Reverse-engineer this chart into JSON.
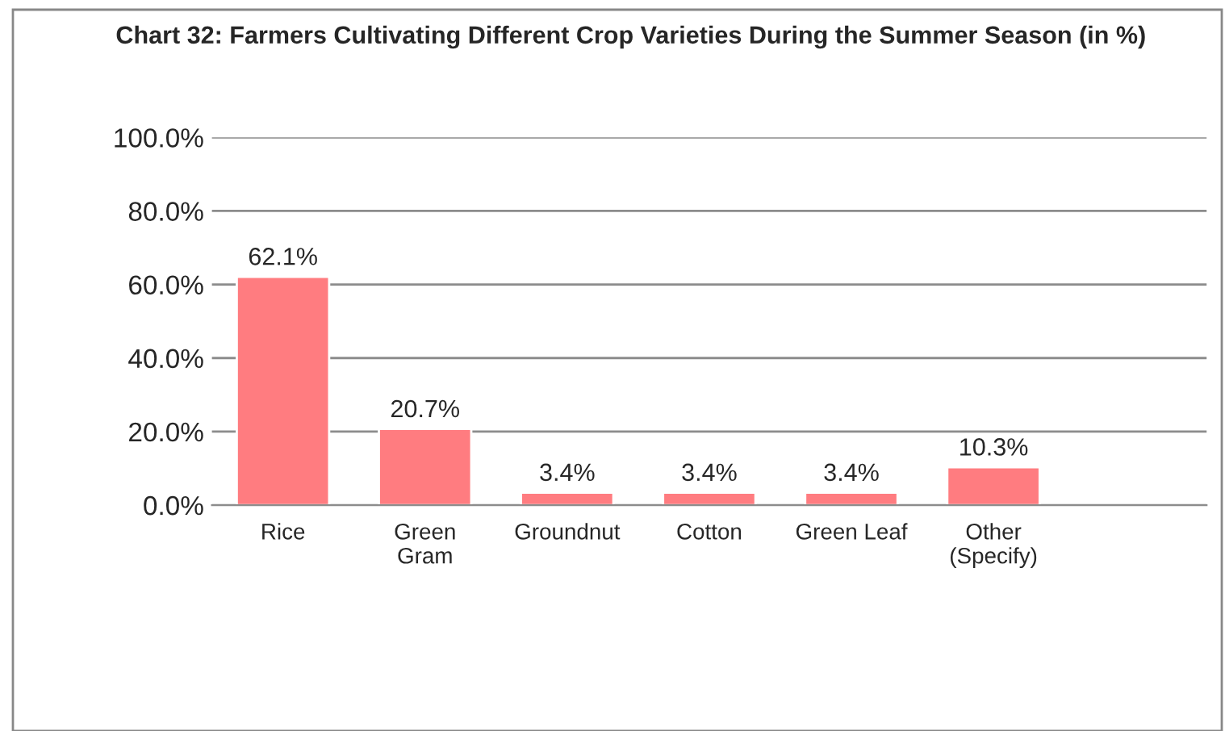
{
  "chart_data": {
    "type": "bar",
    "title": "Chart 32: Farmers Cultivating Different Crop Varieties During the Summer Season (in %)",
    "categories": [
      "Rice",
      "Green\nGram",
      "Groundnut",
      "Cotton",
      "Green Leaf",
      "Other\n(Specify)",
      null
    ],
    "values": [
      62.1,
      20.7,
      3.4,
      3.4,
      3.4,
      10.3,
      null
    ],
    "value_labels": [
      "62.1%",
      "20.7%",
      "3.4%",
      "3.4%",
      "3.4%",
      "10.3%",
      null
    ],
    "color": "#ff7c80",
    "ylim": [
      0,
      100
    ],
    "yticks": [
      {
        "value": 0,
        "label": "0.0%"
      },
      {
        "value": 20,
        "label": "20.0%"
      },
      {
        "value": 40,
        "label": "40.0%"
      },
      {
        "value": 60,
        "label": "60.0%"
      },
      {
        "value": 80,
        "label": "80.0%"
      },
      {
        "value": 100,
        "label": "100.0%"
      }
    ],
    "grid": "y",
    "legend": false
  }
}
